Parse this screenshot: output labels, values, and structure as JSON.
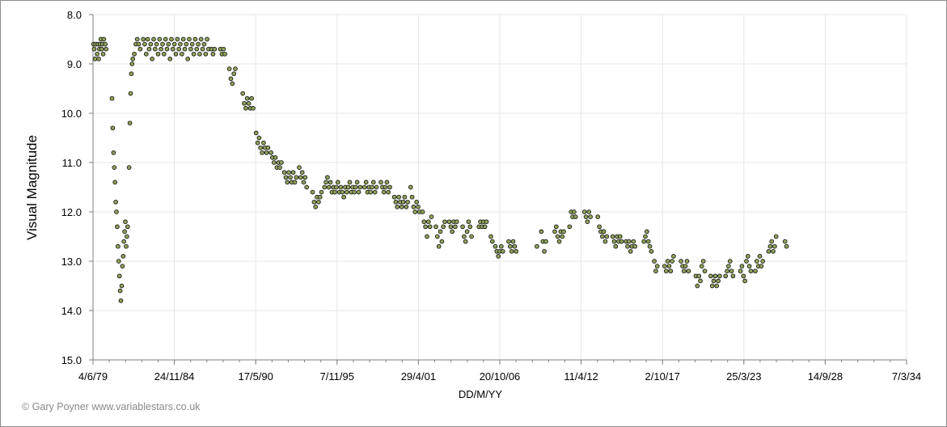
{
  "chart_data": {
    "type": "scatter",
    "xlabel": "DD/M/YY",
    "ylabel": "Visual Magnitude",
    "x_tick_labels": [
      "4/6/79",
      "24/11/84",
      "17/5/90",
      "7/11/95",
      "29/4/01",
      "20/10/06",
      "11/4/12",
      "2/10/17",
      "25/3/23",
      "14/9/28",
      "7/3/34"
    ],
    "x_range_years": [
      1979.42,
      2034.18
    ],
    "ylim": [
      8.0,
      15.0
    ],
    "y_inverted": true,
    "y_tick_labels": [
      "8.0",
      "9.0",
      "10.0",
      "11.0",
      "12.0",
      "13.0",
      "14.0",
      "15.0"
    ],
    "y_ticks": [
      8.0,
      9.0,
      10.0,
      11.0,
      12.0,
      13.0,
      14.0,
      15.0
    ],
    "grid": true,
    "marker_fill": "#8fa35a",
    "marker_edge": "#1a1a1a",
    "series_points": [
      [
        1979.45,
        8.6
      ],
      [
        1979.5,
        8.7
      ],
      [
        1979.55,
        8.9
      ],
      [
        1979.6,
        8.6
      ],
      [
        1979.7,
        8.8
      ],
      [
        1979.75,
        8.6
      ],
      [
        1979.8,
        8.9
      ],
      [
        1979.85,
        8.7
      ],
      [
        1979.9,
        8.6
      ],
      [
        1979.95,
        8.5
      ],
      [
        1980.0,
        8.7
      ],
      [
        1980.05,
        8.6
      ],
      [
        1980.1,
        8.8
      ],
      [
        1980.15,
        8.5
      ],
      [
        1980.25,
        8.6
      ],
      [
        1980.3,
        8.7
      ],
      [
        1980.7,
        9.7
      ],
      [
        1980.75,
        10.3
      ],
      [
        1980.8,
        10.8
      ],
      [
        1980.85,
        11.1
      ],
      [
        1980.9,
        11.4
      ],
      [
        1980.95,
        11.8
      ],
      [
        1981.0,
        12.0
      ],
      [
        1981.05,
        12.3
      ],
      [
        1981.1,
        12.7
      ],
      [
        1981.15,
        13.0
      ],
      [
        1981.2,
        13.3
      ],
      [
        1981.25,
        13.6
      ],
      [
        1981.3,
        13.8
      ],
      [
        1981.35,
        13.5
      ],
      [
        1981.4,
        13.1
      ],
      [
        1981.45,
        12.9
      ],
      [
        1981.5,
        12.6
      ],
      [
        1981.55,
        12.4
      ],
      [
        1981.6,
        12.2
      ],
      [
        1981.65,
        12.7
      ],
      [
        1981.7,
        12.5
      ],
      [
        1981.75,
        12.3
      ],
      [
        1981.85,
        11.1
      ],
      [
        1981.9,
        10.2
      ],
      [
        1981.95,
        9.6
      ],
      [
        1982.0,
        9.2
      ],
      [
        1982.05,
        9.0
      ],
      [
        1982.1,
        8.9
      ],
      [
        1982.2,
        8.8
      ],
      [
        1982.3,
        8.6
      ],
      [
        1982.4,
        8.5
      ],
      [
        1982.5,
        8.6
      ],
      [
        1982.6,
        8.7
      ],
      [
        1982.8,
        8.5
      ],
      [
        1982.9,
        8.6
      ],
      [
        1983.0,
        8.8
      ],
      [
        1983.1,
        8.5
      ],
      [
        1983.2,
        8.7
      ],
      [
        1983.3,
        8.6
      ],
      [
        1983.4,
        8.9
      ],
      [
        1983.5,
        8.5
      ],
      [
        1983.6,
        8.7
      ],
      [
        1983.7,
        8.6
      ],
      [
        1983.8,
        8.8
      ],
      [
        1983.9,
        8.5
      ],
      [
        1984.0,
        8.7
      ],
      [
        1984.1,
        8.6
      ],
      [
        1984.2,
        8.8
      ],
      [
        1984.3,
        8.5
      ],
      [
        1984.4,
        8.7
      ],
      [
        1984.5,
        8.6
      ],
      [
        1984.6,
        8.9
      ],
      [
        1984.7,
        8.5
      ],
      [
        1984.8,
        8.7
      ],
      [
        1984.9,
        8.6
      ],
      [
        1985.0,
        8.8
      ],
      [
        1985.1,
        8.5
      ],
      [
        1985.2,
        8.7
      ],
      [
        1985.3,
        8.6
      ],
      [
        1985.4,
        8.8
      ],
      [
        1985.5,
        8.5
      ],
      [
        1985.6,
        8.7
      ],
      [
        1985.7,
        8.6
      ],
      [
        1985.8,
        8.9
      ],
      [
        1985.9,
        8.5
      ],
      [
        1986.0,
        8.7
      ],
      [
        1986.1,
        8.6
      ],
      [
        1986.2,
        8.8
      ],
      [
        1986.3,
        8.5
      ],
      [
        1986.4,
        8.7
      ],
      [
        1986.5,
        8.6
      ],
      [
        1986.6,
        8.8
      ],
      [
        1986.7,
        8.5
      ],
      [
        1986.8,
        8.7
      ],
      [
        1986.9,
        8.6
      ],
      [
        1987.0,
        8.8
      ],
      [
        1987.1,
        8.5
      ],
      [
        1987.2,
        8.7
      ],
      [
        1987.4,
        8.7
      ],
      [
        1987.5,
        8.8
      ],
      [
        1987.6,
        8.7
      ],
      [
        1988.0,
        8.7
      ],
      [
        1988.1,
        8.8
      ],
      [
        1988.2,
        8.7
      ],
      [
        1988.3,
        8.8
      ],
      [
        1988.6,
        9.1
      ],
      [
        1988.7,
        9.3
      ],
      [
        1988.8,
        9.4
      ],
      [
        1988.9,
        9.2
      ],
      [
        1989.0,
        9.1
      ],
      [
        1989.5,
        9.6
      ],
      [
        1989.6,
        9.8
      ],
      [
        1989.7,
        9.9
      ],
      [
        1989.8,
        9.7
      ],
      [
        1989.9,
        9.8
      ],
      [
        1990.0,
        9.9
      ],
      [
        1990.1,
        9.7
      ],
      [
        1990.2,
        9.9
      ],
      [
        1990.4,
        10.4
      ],
      [
        1990.5,
        10.6
      ],
      [
        1990.6,
        10.5
      ],
      [
        1990.7,
        10.7
      ],
      [
        1990.8,
        10.8
      ],
      [
        1990.9,
        10.6
      ],
      [
        1991.0,
        10.7
      ],
      [
        1991.1,
        10.8
      ],
      [
        1991.2,
        10.7
      ],
      [
        1991.4,
        10.8
      ],
      [
        1991.5,
        10.9
      ],
      [
        1991.6,
        11.0
      ],
      [
        1991.7,
        10.9
      ],
      [
        1991.8,
        11.1
      ],
      [
        1991.9,
        11.0
      ],
      [
        1992.0,
        11.1
      ],
      [
        1992.1,
        11.0
      ],
      [
        1992.3,
        11.2
      ],
      [
        1992.4,
        11.3
      ],
      [
        1992.5,
        11.4
      ],
      [
        1992.6,
        11.2
      ],
      [
        1992.7,
        11.3
      ],
      [
        1992.8,
        11.4
      ],
      [
        1992.9,
        11.2
      ],
      [
        1993.0,
        11.4
      ],
      [
        1993.1,
        11.3
      ],
      [
        1993.3,
        11.1
      ],
      [
        1993.4,
        11.3
      ],
      [
        1993.5,
        11.2
      ],
      [
        1993.6,
        11.4
      ],
      [
        1993.7,
        11.3
      ],
      [
        1993.8,
        11.5
      ],
      [
        1994.2,
        11.6
      ],
      [
        1994.3,
        11.8
      ],
      [
        1994.4,
        11.9
      ],
      [
        1994.5,
        11.7
      ],
      [
        1994.6,
        11.8
      ],
      [
        1994.7,
        11.7
      ],
      [
        1994.8,
        11.6
      ],
      [
        1995.0,
        11.5
      ],
      [
        1995.1,
        11.4
      ],
      [
        1995.2,
        11.3
      ],
      [
        1995.3,
        11.5
      ],
      [
        1995.4,
        11.4
      ],
      [
        1995.5,
        11.6
      ],
      [
        1995.6,
        11.5
      ],
      [
        1995.7,
        11.6
      ],
      [
        1995.8,
        11.5
      ],
      [
        1995.9,
        11.4
      ],
      [
        1996.0,
        11.6
      ],
      [
        1996.1,
        11.5
      ],
      [
        1996.2,
        11.6
      ],
      [
        1996.3,
        11.7
      ],
      [
        1996.4,
        11.5
      ],
      [
        1996.5,
        11.6
      ],
      [
        1996.6,
        11.5
      ],
      [
        1996.7,
        11.4
      ],
      [
        1996.8,
        11.6
      ],
      [
        1996.9,
        11.5
      ],
      [
        1997.0,
        11.6
      ],
      [
        1997.1,
        11.5
      ],
      [
        1997.2,
        11.4
      ],
      [
        1997.3,
        11.6
      ],
      [
        1997.4,
        11.5
      ],
      [
        1997.7,
        11.5
      ],
      [
        1997.8,
        11.4
      ],
      [
        1997.9,
        11.6
      ],
      [
        1998.0,
        11.5
      ],
      [
        1998.1,
        11.6
      ],
      [
        1998.2,
        11.5
      ],
      [
        1998.3,
        11.4
      ],
      [
        1998.4,
        11.6
      ],
      [
        1998.5,
        11.5
      ],
      [
        1998.8,
        11.4
      ],
      [
        1998.9,
        11.5
      ],
      [
        1999.0,
        11.6
      ],
      [
        1999.1,
        11.5
      ],
      [
        1999.2,
        11.4
      ],
      [
        1999.3,
        11.6
      ],
      [
        1999.4,
        11.5
      ],
      [
        1999.7,
        11.7
      ],
      [
        1999.8,
        11.8
      ],
      [
        1999.9,
        11.9
      ],
      [
        2000.0,
        11.7
      ],
      [
        2000.1,
        11.8
      ],
      [
        2000.2,
        11.9
      ],
      [
        2000.3,
        11.8
      ],
      [
        2000.4,
        11.7
      ],
      [
        2000.5,
        11.9
      ],
      [
        2000.6,
        11.8
      ],
      [
        2000.8,
        11.5
      ],
      [
        2000.9,
        11.7
      ],
      [
        2001.0,
        11.9
      ],
      [
        2001.1,
        12.0
      ],
      [
        2001.2,
        11.8
      ],
      [
        2001.3,
        11.9
      ],
      [
        2001.4,
        12.0
      ],
      [
        2001.6,
        12.0
      ],
      [
        2001.7,
        12.2
      ],
      [
        2001.8,
        12.3
      ],
      [
        2001.9,
        12.5
      ],
      [
        2002.0,
        12.2
      ],
      [
        2002.1,
        12.3
      ],
      [
        2002.2,
        12.1
      ],
      [
        2002.5,
        12.3
      ],
      [
        2002.6,
        12.5
      ],
      [
        2002.7,
        12.7
      ],
      [
        2002.8,
        12.4
      ],
      [
        2002.9,
        12.6
      ],
      [
        2003.0,
        12.3
      ],
      [
        2003.1,
        12.2
      ],
      [
        2003.4,
        12.2
      ],
      [
        2003.5,
        12.3
      ],
      [
        2003.6,
        12.4
      ],
      [
        2003.7,
        12.2
      ],
      [
        2003.8,
        12.3
      ],
      [
        2003.9,
        12.2
      ],
      [
        2004.3,
        12.3
      ],
      [
        2004.4,
        12.5
      ],
      [
        2004.5,
        12.6
      ],
      [
        2004.6,
        12.4
      ],
      [
        2004.7,
        12.2
      ],
      [
        2004.8,
        12.3
      ],
      [
        2004.9,
        12.5
      ],
      [
        2005.4,
        12.3
      ],
      [
        2005.5,
        12.2
      ],
      [
        2005.6,
        12.3
      ],
      [
        2005.7,
        12.2
      ],
      [
        2005.8,
        12.3
      ],
      [
        2005.9,
        12.2
      ],
      [
        2006.2,
        12.5
      ],
      [
        2006.3,
        12.6
      ],
      [
        2006.5,
        12.7
      ],
      [
        2006.6,
        12.8
      ],
      [
        2006.7,
        12.9
      ],
      [
        2006.8,
        12.8
      ],
      [
        2006.9,
        12.7
      ],
      [
        2007.0,
        12.8
      ],
      [
        2007.4,
        12.6
      ],
      [
        2007.5,
        12.7
      ],
      [
        2007.6,
        12.8
      ],
      [
        2007.7,
        12.6
      ],
      [
        2007.8,
        12.7
      ],
      [
        2007.9,
        12.8
      ],
      [
        2009.3,
        12.7
      ],
      [
        2009.6,
        12.4
      ],
      [
        2009.7,
        12.6
      ],
      [
        2009.8,
        12.8
      ],
      [
        2009.9,
        12.6
      ],
      [
        2010.5,
        12.4
      ],
      [
        2010.6,
        12.3
      ],
      [
        2010.7,
        12.5
      ],
      [
        2010.8,
        12.6
      ],
      [
        2010.9,
        12.4
      ],
      [
        2011.0,
        12.5
      ],
      [
        2011.1,
        12.4
      ],
      [
        2011.5,
        12.3
      ],
      [
        2011.6,
        12.0
      ],
      [
        2011.7,
        12.1
      ],
      [
        2011.8,
        12.0
      ],
      [
        2011.9,
        12.1
      ],
      [
        2012.5,
        12.0
      ],
      [
        2012.6,
        12.1
      ],
      [
        2012.7,
        12.2
      ],
      [
        2012.8,
        12.0
      ],
      [
        2012.9,
        12.1
      ],
      [
        2013.4,
        12.1
      ],
      [
        2013.5,
        12.3
      ],
      [
        2013.6,
        12.4
      ],
      [
        2013.7,
        12.5
      ],
      [
        2013.8,
        12.4
      ],
      [
        2013.9,
        12.6
      ],
      [
        2014.0,
        12.5
      ],
      [
        2014.4,
        12.5
      ],
      [
        2014.5,
        12.6
      ],
      [
        2014.6,
        12.7
      ],
      [
        2014.7,
        12.5
      ],
      [
        2014.8,
        12.6
      ],
      [
        2014.9,
        12.5
      ],
      [
        2015.0,
        12.6
      ],
      [
        2015.3,
        12.6
      ],
      [
        2015.4,
        12.7
      ],
      [
        2015.5,
        12.6
      ],
      [
        2015.6,
        12.8
      ],
      [
        2015.7,
        12.7
      ],
      [
        2015.8,
        12.6
      ],
      [
        2015.9,
        12.7
      ],
      [
        2016.5,
        12.6
      ],
      [
        2016.6,
        12.5
      ],
      [
        2016.7,
        12.4
      ],
      [
        2016.8,
        12.6
      ],
      [
        2016.9,
        12.7
      ],
      [
        2017.0,
        12.8
      ],
      [
        2017.2,
        13.0
      ],
      [
        2017.3,
        13.2
      ],
      [
        2017.4,
        13.1
      ],
      [
        2017.9,
        13.1
      ],
      [
        2018.0,
        13.2
      ],
      [
        2018.1,
        13.0
      ],
      [
        2018.2,
        13.1
      ],
      [
        2018.3,
        13.2
      ],
      [
        2018.4,
        13.0
      ],
      [
        2018.5,
        12.9
      ],
      [
        2019.0,
        13.0
      ],
      [
        2019.1,
        13.1
      ],
      [
        2019.2,
        13.2
      ],
      [
        2019.3,
        13.1
      ],
      [
        2019.4,
        13.0
      ],
      [
        2019.5,
        13.2
      ],
      [
        2020.0,
        13.3
      ],
      [
        2020.1,
        13.5
      ],
      [
        2020.2,
        13.3
      ],
      [
        2020.3,
        13.4
      ],
      [
        2020.4,
        13.1
      ],
      [
        2020.5,
        13.0
      ],
      [
        2020.6,
        13.2
      ],
      [
        2021.0,
        13.3
      ],
      [
        2021.1,
        13.5
      ],
      [
        2021.2,
        13.4
      ],
      [
        2021.3,
        13.3
      ],
      [
        2021.4,
        13.5
      ],
      [
        2021.5,
        13.4
      ],
      [
        2021.6,
        13.3
      ],
      [
        2022.0,
        13.3
      ],
      [
        2022.1,
        13.2
      ],
      [
        2022.2,
        13.1
      ],
      [
        2022.3,
        13.0
      ],
      [
        2022.4,
        13.2
      ],
      [
        2022.5,
        13.3
      ],
      [
        2023.0,
        13.2
      ],
      [
        2023.1,
        13.1
      ],
      [
        2023.2,
        13.3
      ],
      [
        2023.3,
        13.4
      ],
      [
        2023.4,
        13.0
      ],
      [
        2023.5,
        12.9
      ],
      [
        2023.6,
        13.1
      ],
      [
        2023.7,
        13.2
      ],
      [
        2024.0,
        13.2
      ],
      [
        2024.1,
        13.0
      ],
      [
        2024.2,
        13.1
      ],
      [
        2024.3,
        12.9
      ],
      [
        2024.4,
        13.1
      ],
      [
        2024.5,
        13.0
      ],
      [
        2024.9,
        12.8
      ],
      [
        2025.0,
        12.7
      ],
      [
        2025.1,
        12.6
      ],
      [
        2025.2,
        12.8
      ],
      [
        2025.3,
        12.7
      ],
      [
        2025.4,
        12.5
      ],
      [
        2026.0,
        12.6
      ],
      [
        2026.1,
        12.7
      ]
    ]
  },
  "credit": "© Gary Poyner www.variablestars.co.uk"
}
